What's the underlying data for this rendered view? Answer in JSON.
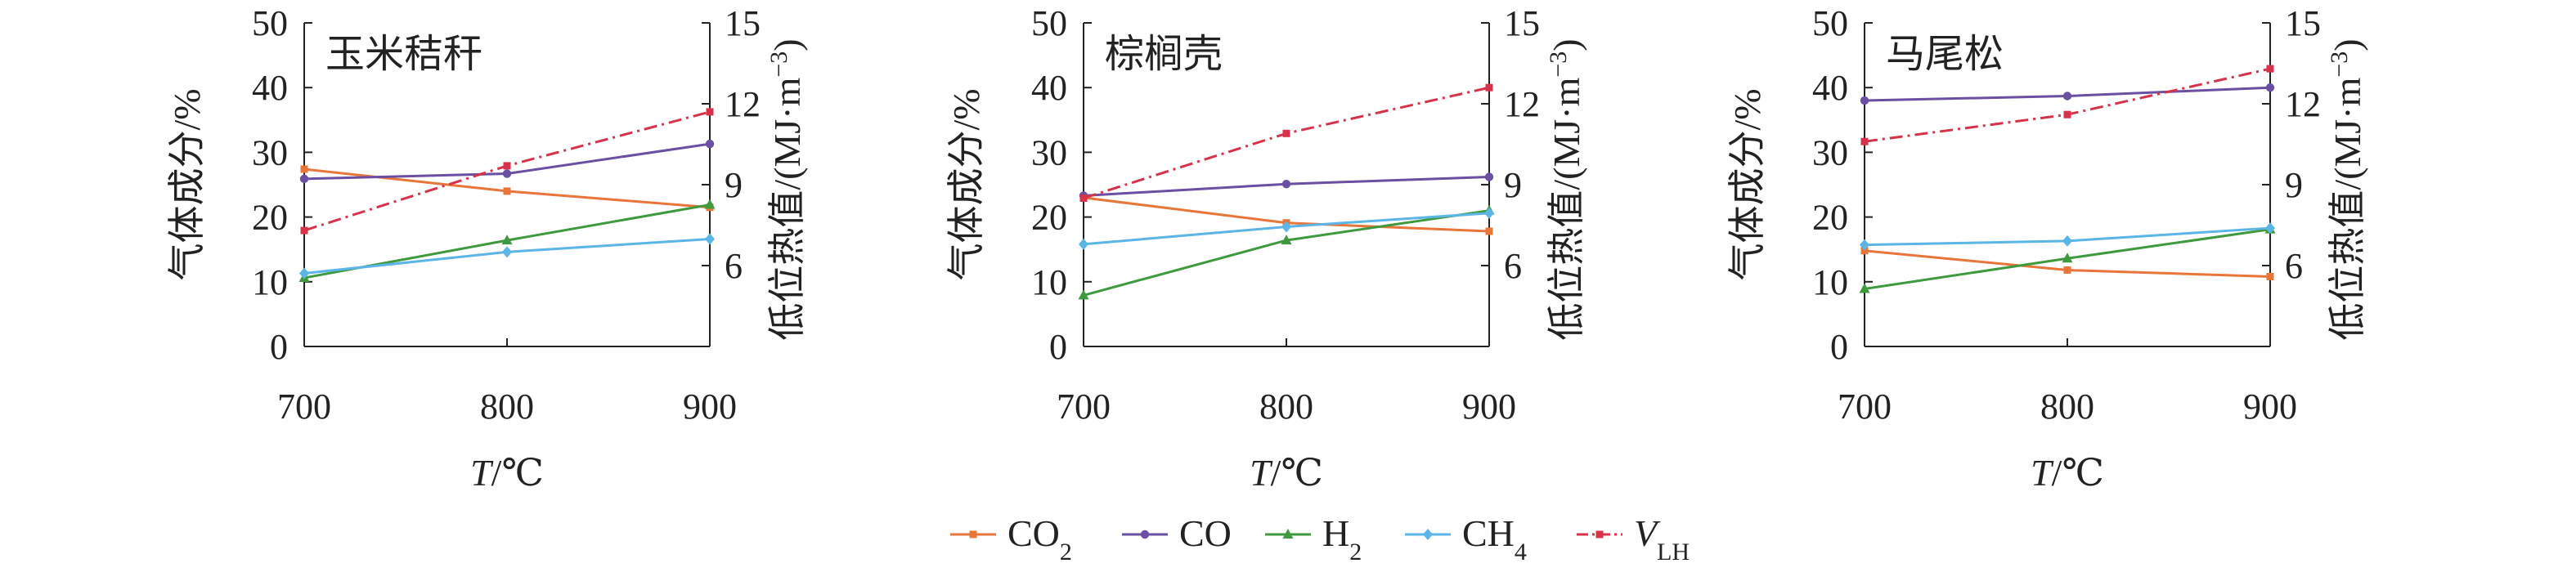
{
  "chart_data": [
    {
      "type": "line",
      "title": "玉米秸秆",
      "x": [
        700,
        800,
        900
      ],
      "xlabel": {
        "main": "T",
        "unit": "/℃"
      },
      "ylabel": "气体成分/%",
      "y2label": {
        "main": "低位热值/(MJ·m",
        "sup": "−3",
        "tail": ")"
      },
      "xlim": [
        700,
        900
      ],
      "ylim": [
        0,
        50
      ],
      "y2lim": [
        3,
        15
      ],
      "xticks": [
        "700",
        "800",
        "900"
      ],
      "yticks": [
        "0",
        "10",
        "20",
        "30",
        "40",
        "50"
      ],
      "y2ticks": [
        "6",
        "9",
        "12",
        "15"
      ],
      "series": [
        {
          "name": "CO2",
          "axis": "left",
          "values": [
            27.4,
            24.0,
            21.5
          ]
        },
        {
          "name": "CO",
          "axis": "left",
          "values": [
            25.9,
            26.7,
            31.3
          ]
        },
        {
          "name": "H2",
          "axis": "left",
          "values": [
            10.6,
            16.4,
            21.9
          ]
        },
        {
          "name": "CH4",
          "axis": "left",
          "values": [
            11.3,
            14.6,
            16.6
          ]
        },
        {
          "name": "VLH",
          "axis": "right",
          "values": [
            7.3,
            9.7,
            11.7
          ]
        }
      ]
    },
    {
      "type": "line",
      "title": "棕榈壳",
      "x": [
        700,
        800,
        900
      ],
      "xlabel": {
        "main": "T",
        "unit": "/℃"
      },
      "ylabel": "气体成分/%",
      "y2label": {
        "main": "低位热值/(MJ·m",
        "sup": "−3",
        "tail": ")"
      },
      "xlim": [
        700,
        900
      ],
      "ylim": [
        0,
        50
      ],
      "y2lim": [
        3,
        15
      ],
      "xticks": [
        "700",
        "800",
        "900"
      ],
      "yticks": [
        "0",
        "10",
        "20",
        "30",
        "40",
        "50"
      ],
      "y2ticks": [
        "6",
        "9",
        "12",
        "15"
      ],
      "series": [
        {
          "name": "CO2",
          "axis": "left",
          "values": [
            23.0,
            19.1,
            17.8
          ]
        },
        {
          "name": "CO",
          "axis": "left",
          "values": [
            23.3,
            25.1,
            26.2
          ]
        },
        {
          "name": "H2",
          "axis": "left",
          "values": [
            7.9,
            16.4,
            21.0
          ]
        },
        {
          "name": "CH4",
          "axis": "left",
          "values": [
            15.8,
            18.5,
            20.6
          ]
        },
        {
          "name": "VLH",
          "axis": "right",
          "values": [
            8.5,
            10.9,
            12.6
          ]
        }
      ]
    },
    {
      "type": "line",
      "title": "马尾松",
      "x": [
        700,
        800,
        900
      ],
      "xlabel": {
        "main": "T",
        "unit": "/℃"
      },
      "ylabel": "气体成分/%",
      "y2label": {
        "main": "低位热值/(MJ·m",
        "sup": "−3",
        "tail": ")"
      },
      "xlim": [
        700,
        900
      ],
      "ylim": [
        0,
        50
      ],
      "y2lim": [
        3,
        15
      ],
      "xticks": [
        "700",
        "800",
        "900"
      ],
      "yticks": [
        "0",
        "10",
        "20",
        "30",
        "40",
        "50"
      ],
      "y2ticks": [
        "6",
        "9",
        "12",
        "15"
      ],
      "series": [
        {
          "name": "CO2",
          "axis": "left",
          "values": [
            14.8,
            11.8,
            10.8
          ]
        },
        {
          "name": "CO",
          "axis": "left",
          "values": [
            38.0,
            38.7,
            40.0
          ]
        },
        {
          "name": "H2",
          "axis": "left",
          "values": [
            8.9,
            13.6,
            18.1
          ]
        },
        {
          "name": "CH4",
          "axis": "left",
          "values": [
            15.7,
            16.3,
            18.3
          ]
        },
        {
          "name": "VLH",
          "axis": "right",
          "values": [
            10.6,
            11.6,
            13.3
          ]
        }
      ]
    }
  ],
  "legend": {
    "placement": "bottom",
    "items": [
      {
        "key": "CO2",
        "main": "CO",
        "sub": "2",
        "italic": false,
        "color": "#E8753A",
        "marker": "square",
        "dash": false
      },
      {
        "key": "CO",
        "main": "CO",
        "sub": "",
        "italic": false,
        "color": "#6A4FA3",
        "marker": "circle",
        "dash": false
      },
      {
        "key": "H2",
        "main": "H",
        "sub": "2",
        "italic": false,
        "color": "#3F9A3F",
        "marker": "triangle",
        "dash": false
      },
      {
        "key": "CH4",
        "main": "CH",
        "sub": "4",
        "italic": false,
        "color": "#5BB5E6",
        "marker": "diamond",
        "dash": false
      },
      {
        "key": "VLH",
        "main": "V",
        "sub": "LH",
        "italic": true,
        "color": "#D6334B",
        "marker": "square",
        "dash": true
      }
    ]
  }
}
